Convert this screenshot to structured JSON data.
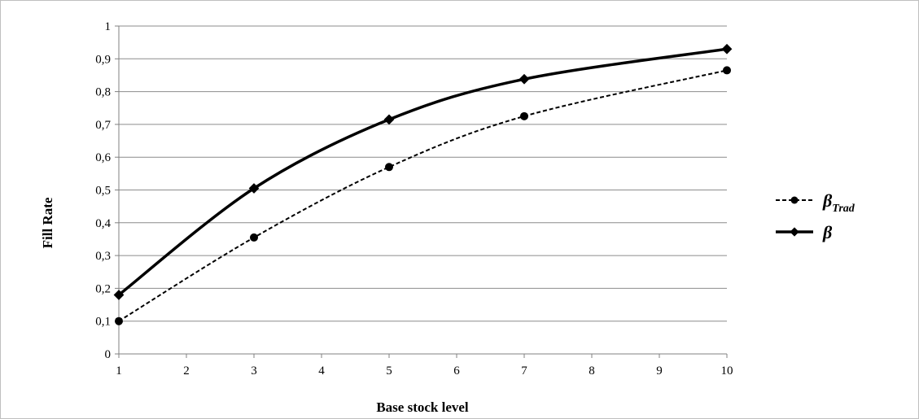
{
  "chart_data": {
    "type": "line",
    "title": "",
    "xlabel": "Base stock level",
    "ylabel": "Fill Rate",
    "xlim": [
      1,
      10
    ],
    "ylim": [
      0,
      1
    ],
    "x_ticks": [
      "1",
      "2",
      "3",
      "4",
      "5",
      "6",
      "7",
      "8",
      "9",
      "10"
    ],
    "y_ticks": [
      "0",
      "0,1",
      "0,2",
      "0,3",
      "0,4",
      "0,5",
      "0,6",
      "0,7",
      "0,8",
      "0,9",
      "1"
    ],
    "grid": "horizontal",
    "legend_position": "right",
    "series": [
      {
        "name": "β",
        "name_sub": "Trad",
        "style": "dashed",
        "marker": "circle",
        "color": "#000000",
        "x": [
          1,
          3,
          5,
          7,
          10
        ],
        "values": [
          0.1,
          0.355,
          0.57,
          0.725,
          0.865
        ]
      },
      {
        "name": "β",
        "name_sub": "",
        "style": "solid",
        "marker": "diamond",
        "color": "#000000",
        "x": [
          1,
          3,
          5,
          7,
          10
        ],
        "values": [
          0.18,
          0.505,
          0.715,
          0.838,
          0.93
        ]
      }
    ]
  }
}
